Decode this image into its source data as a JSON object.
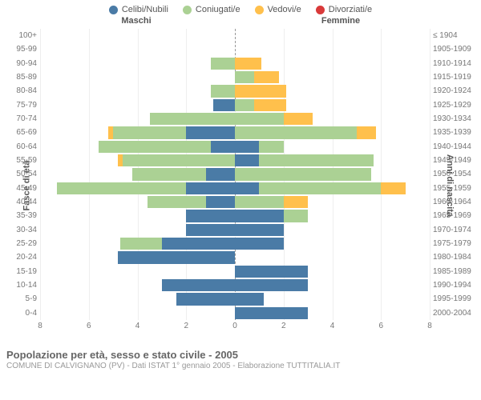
{
  "chart": {
    "type": "population-pyramid",
    "legend": [
      {
        "label": "Celibi/Nubili",
        "color": "#4a7ba6"
      },
      {
        "label": "Coniugati/e",
        "color": "#abd194"
      },
      {
        "label": "Vedovi/e",
        "color": "#ffc04c"
      },
      {
        "label": "Divorziati/e",
        "color": "#d93a3a"
      }
    ],
    "header_left": "Maschi",
    "header_right": "Femmine",
    "y_title_left": "Fasce di età",
    "y_title_right": "Anni di nascita",
    "x_ticks": [
      8,
      6,
      4,
      2,
      0,
      2,
      4,
      6,
      8
    ],
    "x_max": 8,
    "background_color": "#ffffff",
    "grid_color": "#eeeeee",
    "text_color": "#777777",
    "footer_title": "Popolazione per età, sesso e stato civile - 2005",
    "footer_sub": "COMUNE DI CALVIGNANO (PV) - Dati ISTAT 1° gennaio 2005 - Elaborazione TUTTITALIA.IT",
    "rows": [
      {
        "age": "100+",
        "birth": "≤ 1904",
        "m": [
          0,
          0,
          0,
          0
        ],
        "f": [
          0,
          0,
          0,
          0
        ]
      },
      {
        "age": "95-99",
        "birth": "1905-1909",
        "m": [
          0,
          0,
          0,
          0
        ],
        "f": [
          0,
          0,
          0,
          0
        ]
      },
      {
        "age": "90-94",
        "birth": "1910-1914",
        "m": [
          0,
          1.0,
          0,
          0
        ],
        "f": [
          0,
          0,
          1.1,
          0
        ]
      },
      {
        "age": "85-89",
        "birth": "1915-1919",
        "m": [
          0,
          0,
          0,
          0
        ],
        "f": [
          0,
          0.8,
          1.0,
          0
        ]
      },
      {
        "age": "80-84",
        "birth": "1920-1924",
        "m": [
          0,
          1.0,
          0,
          0
        ],
        "f": [
          0,
          0,
          2.1,
          0
        ]
      },
      {
        "age": "75-79",
        "birth": "1925-1929",
        "m": [
          0.9,
          0,
          0,
          0
        ],
        "f": [
          0,
          0.8,
          1.3,
          0
        ]
      },
      {
        "age": "70-74",
        "birth": "1930-1934",
        "m": [
          0,
          3.5,
          0,
          0
        ],
        "f": [
          0,
          2.0,
          1.2,
          0
        ]
      },
      {
        "age": "65-69",
        "birth": "1935-1939",
        "m": [
          2.0,
          3.0,
          0.2,
          0
        ],
        "f": [
          0,
          5.0,
          0.8,
          0
        ]
      },
      {
        "age": "60-64",
        "birth": "1940-1944",
        "m": [
          1.0,
          4.6,
          0,
          0
        ],
        "f": [
          1.0,
          1.0,
          0,
          0
        ]
      },
      {
        "age": "55-59",
        "birth": "1945-1949",
        "m": [
          0,
          4.6,
          0.2,
          0
        ],
        "f": [
          1.0,
          4.7,
          0,
          0
        ]
      },
      {
        "age": "50-54",
        "birth": "1950-1954",
        "m": [
          1.2,
          3.0,
          0,
          0
        ],
        "f": [
          0,
          5.6,
          0,
          0
        ]
      },
      {
        "age": "45-49",
        "birth": "1955-1959",
        "m": [
          2.0,
          5.3,
          0,
          0
        ],
        "f": [
          1.0,
          5.0,
          1.0,
          0
        ]
      },
      {
        "age": "40-44",
        "birth": "1960-1964",
        "m": [
          1.2,
          2.4,
          0,
          0
        ],
        "f": [
          0,
          2.0,
          1.0,
          0
        ]
      },
      {
        "age": "35-39",
        "birth": "1965-1969",
        "m": [
          2.0,
          0,
          0,
          0
        ],
        "f": [
          2.0,
          1.0,
          0,
          0
        ]
      },
      {
        "age": "30-34",
        "birth": "1970-1974",
        "m": [
          2.0,
          0,
          0,
          0
        ],
        "f": [
          2.0,
          0,
          0,
          0
        ]
      },
      {
        "age": "25-29",
        "birth": "1975-1979",
        "m": [
          3.0,
          1.7,
          0,
          0
        ],
        "f": [
          2.0,
          0,
          0,
          0
        ]
      },
      {
        "age": "20-24",
        "birth": "1980-1984",
        "m": [
          4.8,
          0,
          0,
          0
        ],
        "f": [
          0,
          0,
          0,
          0
        ]
      },
      {
        "age": "15-19",
        "birth": "1985-1989",
        "m": [
          0,
          0,
          0,
          0
        ],
        "f": [
          3.0,
          0,
          0,
          0
        ]
      },
      {
        "age": "10-14",
        "birth": "1990-1994",
        "m": [
          3.0,
          0,
          0,
          0
        ],
        "f": [
          3.0,
          0,
          0,
          0
        ]
      },
      {
        "age": "5-9",
        "birth": "1995-1999",
        "m": [
          2.4,
          0,
          0,
          0
        ],
        "f": [
          1.2,
          0,
          0,
          0
        ]
      },
      {
        "age": "0-4",
        "birth": "2000-2004",
        "m": [
          0,
          0,
          0,
          0
        ],
        "f": [
          3.0,
          0,
          0,
          0
        ]
      }
    ]
  }
}
